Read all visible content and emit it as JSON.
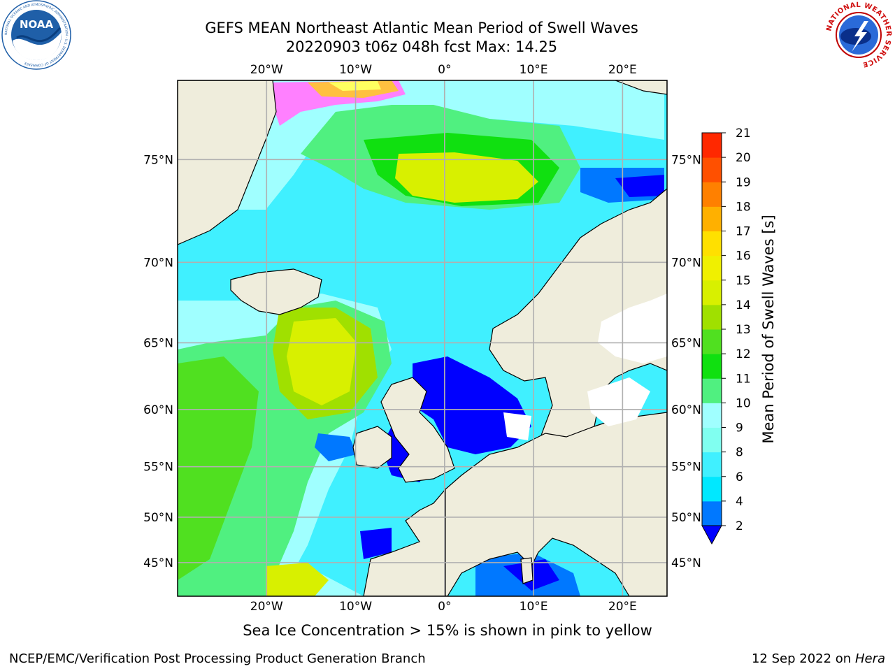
{
  "title": {
    "line1": "GEFS MEAN Northeast Atlantic Mean Period of Swell Waves",
    "line2": "20220903 t06z 048h fcst   Max: 14.25"
  },
  "map": {
    "lon_range": [
      -30,
      25
    ],
    "lat_range": [
      41,
      78
    ],
    "projection": "mercator",
    "lon_ticks": [
      {
        "value": -20,
        "label": "20°W"
      },
      {
        "value": -10,
        "label": "10°W"
      },
      {
        "value": 0,
        "label": "0°"
      },
      {
        "value": 10,
        "label": "10°E"
      },
      {
        "value": 20,
        "label": "20°E"
      }
    ],
    "lat_ticks": [
      {
        "value": 45,
        "label": "45°N"
      },
      {
        "value": 50,
        "label": "50°N"
      },
      {
        "value": 55,
        "label": "55°N"
      },
      {
        "value": 60,
        "label": "60°N"
      },
      {
        "value": 65,
        "label": "65°N"
      },
      {
        "value": 70,
        "label": "70°N"
      },
      {
        "value": 75,
        "label": "75°N"
      }
    ],
    "land_color": "#efeddc",
    "grid_color": "#b0b0b0"
  },
  "colorbar": {
    "label": "Mean Period of Swell Waves [s]",
    "tick_labels": [
      "2",
      "4",
      "6",
      "8",
      "9",
      "10",
      "11",
      "12",
      "13",
      "14",
      "15",
      "16",
      "17",
      "18",
      "19",
      "20",
      "21"
    ],
    "colors": [
      "#0078ff",
      "#00e8ff",
      "#40f0ff",
      "#80fff0",
      "#a0ffff",
      "#50f080",
      "#10e010",
      "#50e020",
      "#a0e000",
      "#d8f000",
      "#f0f000",
      "#ffe000",
      "#ffb000",
      "#ff8000",
      "#ff5000",
      "#ff2800",
      "#ff0000"
    ],
    "extend_color": "#0000ff"
  },
  "footer": {
    "sea_ice_note": "Sea Ice Concentration > 15% is shown in pink to yellow",
    "credit": "NCEP/EMC/Verification Post Processing Product Generation Branch",
    "date": "12 Sep 2022 on",
    "host": "Hera"
  },
  "logos": {
    "noaa": "NOAA",
    "noaa_ring": "NATIONAL OCEANIC AND ATMOSPHERIC ADMINISTRATION · U.S. DEPARTMENT OF COMMERCE",
    "nws": "NATIONAL WEATHER SERVICE"
  }
}
